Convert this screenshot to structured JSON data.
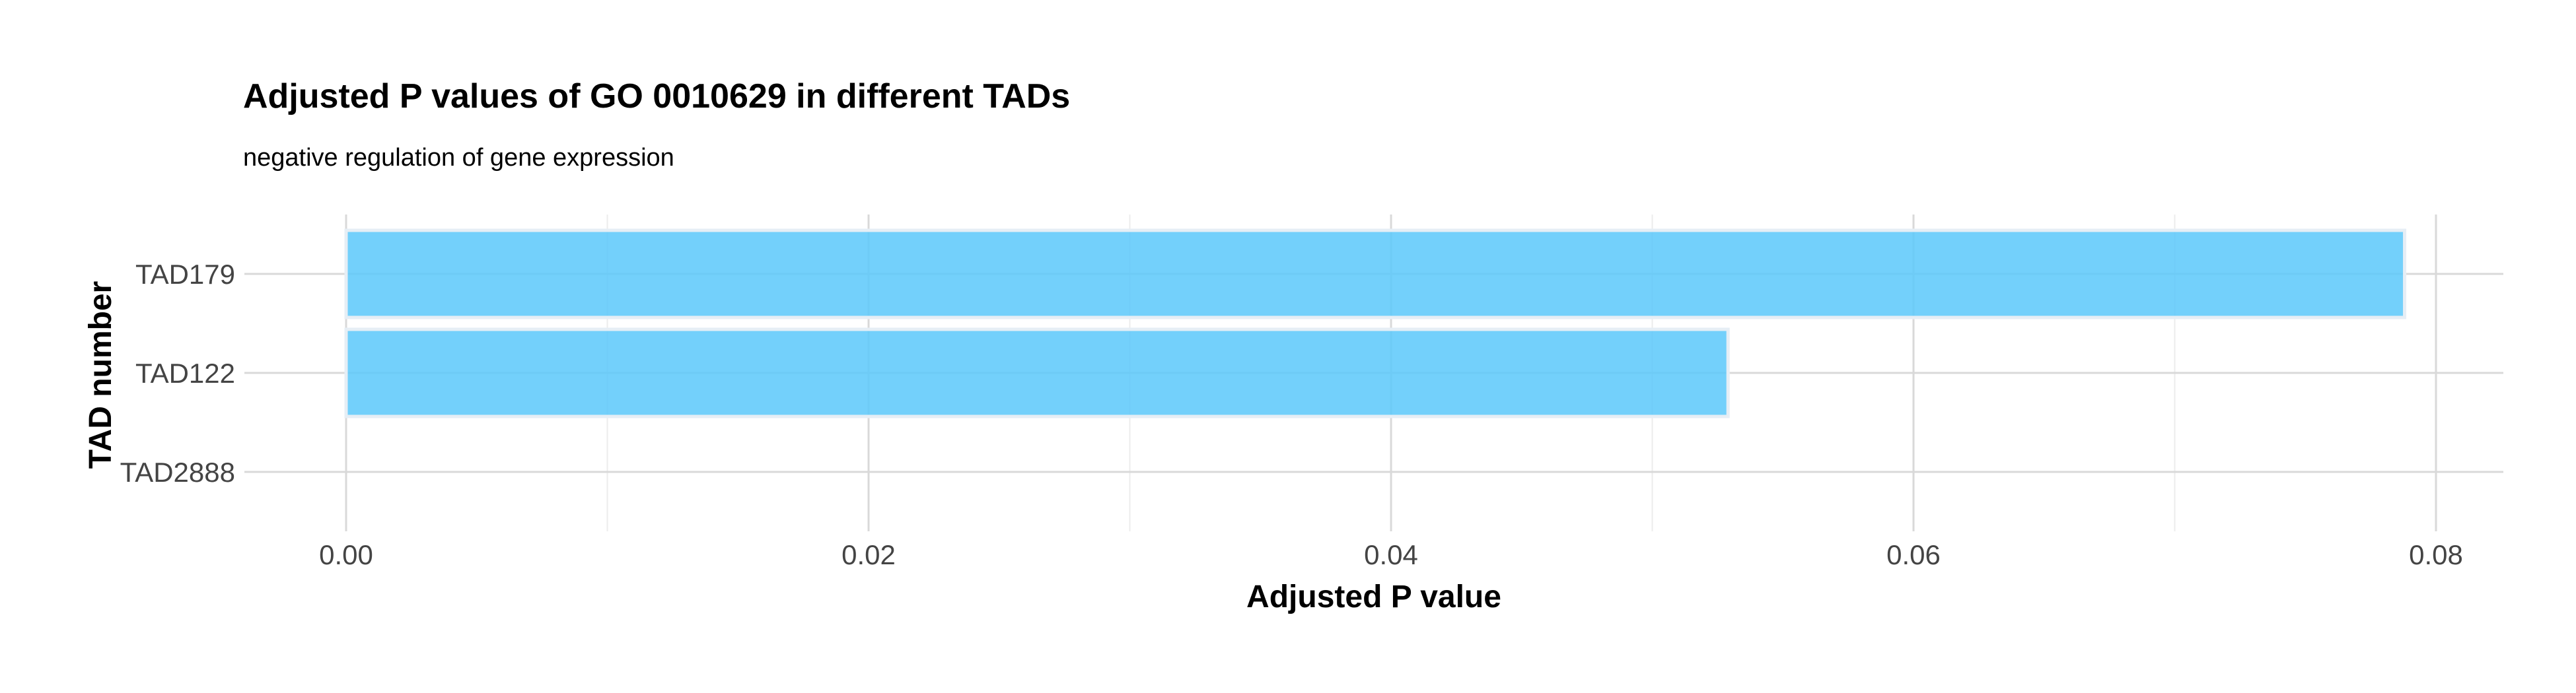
{
  "chart_data": {
    "type": "bar",
    "orientation": "horizontal",
    "title": "Adjusted P values of GO 0010629 in different TADs",
    "subtitle": "negative regulation of gene expression",
    "xlabel": "Adjusted P value",
    "ylabel": "TAD number",
    "categories": [
      "TAD179",
      "TAD122",
      "TAD2888"
    ],
    "values": [
      0.0788,
      0.0529,
      0.0
    ],
    "xlim": [
      0,
      0.08
    ],
    "x_ticks": [
      "0.00",
      "0.02",
      "0.04",
      "0.06",
      "0.08"
    ],
    "x_tick_values": [
      0,
      0.02,
      0.04,
      0.06,
      0.08
    ],
    "grid": true,
    "legend": "none",
    "bar_color": "#5BC8FA",
    "bar_outline_color": "#E6EEF5"
  }
}
